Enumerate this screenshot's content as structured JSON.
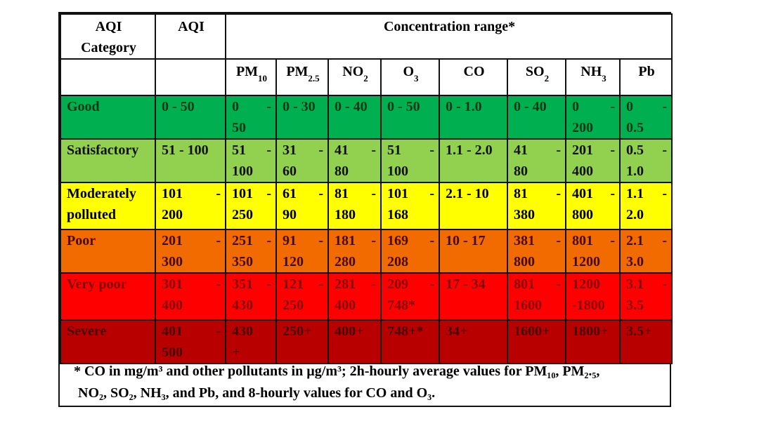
{
  "header": {
    "category_label": "AQI Category",
    "aqi_label": "AQI",
    "concentration_label": "Concentration range*",
    "pollutants": [
      {
        "base": "PM",
        "sub": "10"
      },
      {
        "base": "PM",
        "sub": "2.5"
      },
      {
        "base": "NO",
        "sub": "2"
      },
      {
        "base": "O",
        "sub": "3"
      },
      {
        "base": "CO",
        "sub": ""
      },
      {
        "base": "SO",
        "sub": "2"
      },
      {
        "base": "NH",
        "sub": "3"
      },
      {
        "base": "Pb",
        "sub": ""
      }
    ]
  },
  "rows": [
    {
      "category": "Good",
      "aqi": "0 - 50",
      "values": [
        "0 - 50",
        "0 - 30",
        "0 - 40",
        "0 - 50",
        "0 - 1.0",
        "0 - 40",
        "0 - 200",
        "0 - 0.5"
      ],
      "bg": "#00b050",
      "fg": "#0b3a14"
    },
    {
      "category": "Satisfactory",
      "aqi": "51 - 100",
      "values": [
        "51 - 100",
        "31 - 60",
        "41 - 80",
        "51 - 100",
        "1.1 - 2.0",
        "41 - 80",
        "201 - 400",
        "0.5 - 1.0"
      ],
      "bg": "#92d050",
      "fg": "#111111"
    },
    {
      "category": "Moderately polluted",
      "aqi": "101 - 200",
      "values": [
        "101 - 250",
        "61 - 90",
        "81 - 180",
        "101 - 168",
        "2.1 -  10",
        "81 - 380",
        "401 - 800",
        "1.1 - 2.0"
      ],
      "bg": "#ffff00",
      "fg": "#000000"
    },
    {
      "category": "Poor",
      "aqi": "201 - 300",
      "values": [
        "251 - 350",
        "91 - 120",
        "181 - 280",
        "169 - 208",
        "10 - 17",
        "381 - 800",
        "801 - 1200",
        "2.1 - 3.0"
      ],
      "bg": "#f26b00",
      "fg": "#4a0a00"
    },
    {
      "category": "Very poor",
      "aqi": "301 - 400",
      "values": [
        "351 - 430",
        "121 - 250",
        "281 - 400",
        "209 - 748*",
        "17 - 34",
        "801 - 1600",
        "1200 -1800",
        "3.1 - 3.5"
      ],
      "bg": "#ff0000",
      "fg": "#8a0000"
    },
    {
      "category": "Severe",
      "aqi": "401 - 500",
      "values": [
        "430 +",
        "250+",
        "400+",
        "748+*",
        "34+",
        "1600+",
        "1800+",
        "3.5+"
      ],
      "bg": "#b80000",
      "fg": "#4a0000"
    }
  ],
  "footnote": {
    "line1": "* CO in mg/m³ and other pollutants in µg/m³; 2h-hourly average values for PM₁₀, PM₂.₅,",
    "line2": "NO₂, SO₂, NH₃, and Pb, and 8-hourly values for CO and O₃."
  }
}
